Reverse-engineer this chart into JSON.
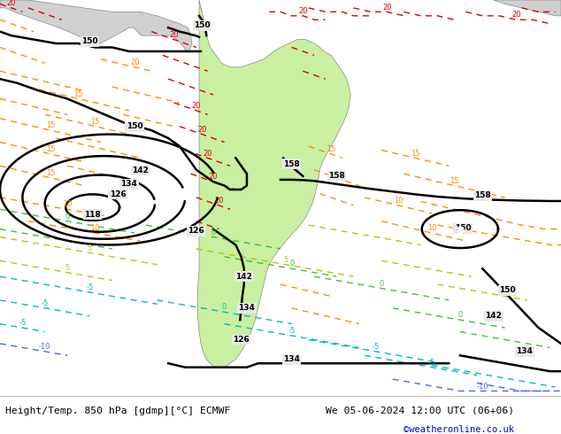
{
  "title_left": "Height/Temp. 850 hPa [gdmp][°C] ECMWF",
  "title_right": "We 05-06-2024 12:00 UTC (06+06)",
  "credit": "©weatheronline.co.uk",
  "ocean_color": "#e8e8e8",
  "land_sa_color": "#c8f0a0",
  "land_other_color": "#d8d8d8",
  "border_color": "#888888",
  "figsize": [
    6.34,
    4.9
  ],
  "dpi": 100
}
